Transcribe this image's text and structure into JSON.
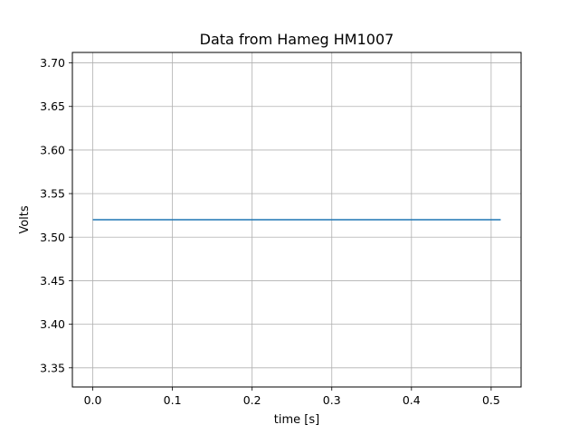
{
  "chart_data": {
    "type": "line",
    "title": "Data from Hameg HM1007",
    "xlabel": "time [s]",
    "ylabel": "Volts",
    "xlim": [
      -0.0256,
      0.5376
    ],
    "ylim": [
      3.328,
      3.712
    ],
    "x_ticks": [
      0.0,
      0.1,
      0.2,
      0.3,
      0.4,
      0.5
    ],
    "x_tick_labels": [
      "0.0",
      "0.1",
      "0.2",
      "0.3",
      "0.4",
      "0.5"
    ],
    "y_ticks": [
      3.35,
      3.4,
      3.45,
      3.5,
      3.55,
      3.6,
      3.65,
      3.7
    ],
    "y_tick_labels": [
      "3.35",
      "3.40",
      "3.45",
      "3.50",
      "3.55",
      "3.60",
      "3.65",
      "3.70"
    ],
    "grid": true,
    "series": [
      {
        "color": "#1f77b4",
        "x": [
          0.0,
          0.512
        ],
        "y": [
          3.52,
          3.52
        ]
      }
    ]
  }
}
